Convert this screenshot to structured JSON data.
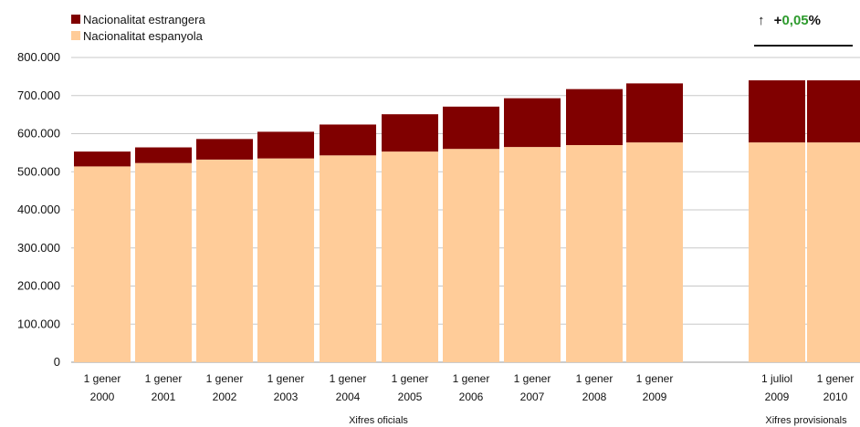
{
  "legend": {
    "foreign_label": "Nacionalitat estrangera",
    "spanish_label": "Nacionalitat espanyola"
  },
  "indicator": {
    "arrow": "↑",
    "sign": "+",
    "value": "0,05",
    "unit": "%"
  },
  "colors": {
    "foreign": "#800000",
    "spanish": "#FFCC99",
    "grid": "#c8c8c8",
    "positive": "#2e9b2e"
  },
  "chart_data": {
    "type": "bar",
    "stacked": true,
    "y_ticks": [
      "0",
      "100.000",
      "200.000",
      "300.000",
      "400.000",
      "500.000",
      "600.000",
      "700.000",
      "800.000"
    ],
    "ylim": [
      0,
      800000
    ],
    "grid": true,
    "categories": [
      {
        "line1": "1 gener",
        "line2": "2000"
      },
      {
        "line1": "1 gener",
        "line2": "2001"
      },
      {
        "line1": "1 gener",
        "line2": "2002"
      },
      {
        "line1": "1 gener",
        "line2": "2003"
      },
      {
        "line1": "1 gener",
        "line2": "2004"
      },
      {
        "line1": "1 gener",
        "line2": "2005"
      },
      {
        "line1": "1 gener",
        "line2": "2006"
      },
      {
        "line1": "1 gener",
        "line2": "2007"
      },
      {
        "line1": "1 gener",
        "line2": "2008"
      },
      {
        "line1": "1 gener",
        "line2": "2009"
      },
      {
        "line1": "1 juliol",
        "line2": "2009"
      },
      {
        "line1": "1 gener",
        "line2": "2010"
      }
    ],
    "series": [
      {
        "name": "Nacionalitat espanyola",
        "values": [
          514000,
          523000,
          532000,
          535000,
          543000,
          553000,
          560000,
          565000,
          570000,
          577000,
          577000,
          577000
        ]
      },
      {
        "name": "Nacionalitat estrangera",
        "values": [
          39000,
          41000,
          54000,
          70000,
          81000,
          98000,
          111000,
          128000,
          147000,
          155000,
          163000,
          163000
        ]
      }
    ],
    "groups": [
      {
        "label": "Xifres oficials",
        "from": 0,
        "to": 9
      },
      {
        "label": "Xifres provisionals",
        "from": 10,
        "to": 11
      }
    ]
  }
}
